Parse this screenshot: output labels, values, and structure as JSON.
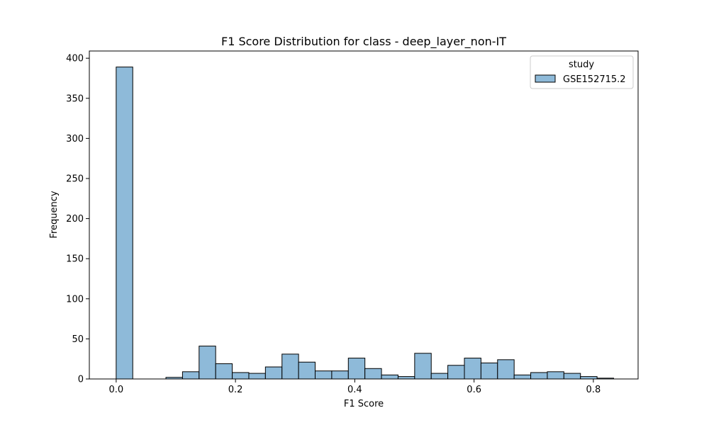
{
  "chart_data": {
    "type": "bar",
    "title": "F1 Score Distribution for class - deep_layer_non-IT",
    "xlabel": "F1 Score",
    "ylabel": "Frequency",
    "xlim": [
      -0.045,
      0.875
    ],
    "ylim": [
      0,
      409
    ],
    "xticks": [
      0.0,
      0.2,
      0.4,
      0.6,
      0.8
    ],
    "xtick_labels": [
      "0.0",
      "0.2",
      "0.4",
      "0.6",
      "0.8"
    ],
    "yticks": [
      0,
      50,
      100,
      150,
      200,
      250,
      300,
      350,
      400
    ],
    "ytick_labels": [
      "0",
      "50",
      "100",
      "150",
      "200",
      "250",
      "300",
      "350",
      "400"
    ],
    "bin_width": 0.0278,
    "bin_start": 0.0,
    "series": [
      {
        "name": "GSE152715.2",
        "color": "#8ebad9",
        "edge_color": "#000000",
        "values": [
          389,
          0,
          0,
          2,
          9,
          41,
          19,
          8,
          7,
          15,
          31,
          21,
          10,
          10,
          26,
          13,
          5,
          3,
          32,
          7,
          17,
          26,
          20,
          24,
          5,
          8,
          9,
          7,
          3,
          1
        ]
      }
    ],
    "legend": {
      "title": "study",
      "placement": "top-right"
    },
    "grid": false
  }
}
